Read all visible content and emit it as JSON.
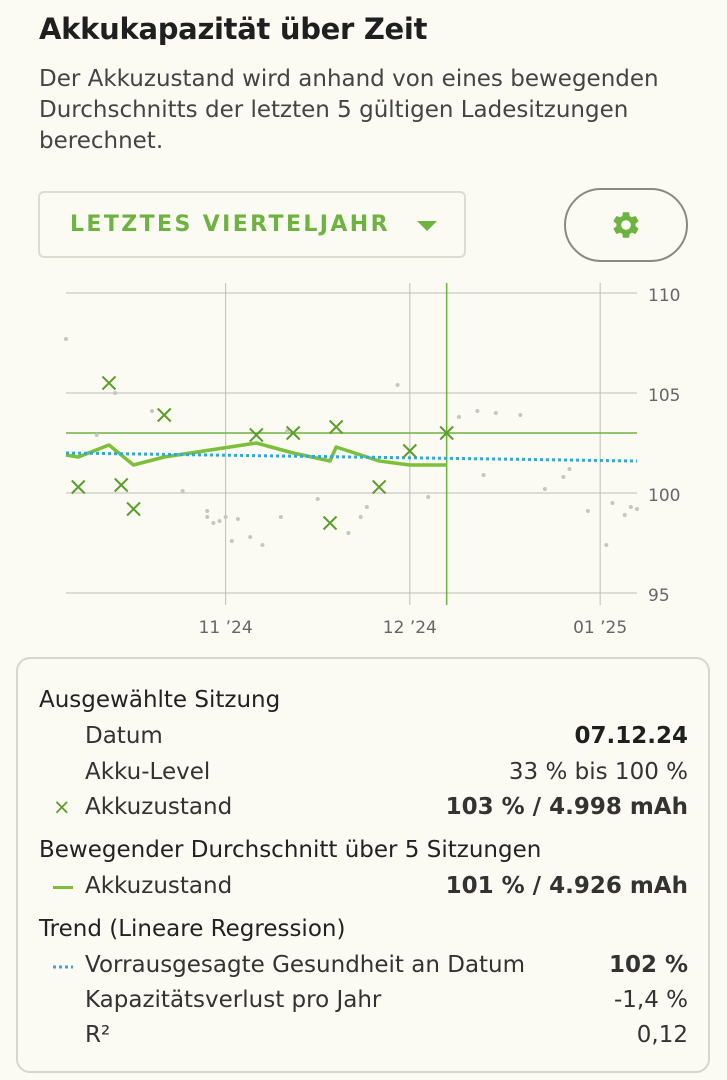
{
  "header": {
    "title": "Akkukapazität über Zeit",
    "description": "Der Akkuzustand wird anhand von eines bewegenden Durchschnitts der letzten 5 gültigen Ladesitzungen berechnet."
  },
  "controls": {
    "range_label": "LETZTES VIERTELJAHR",
    "settings_icon": "gear-icon",
    "accent_color": "#6db33f"
  },
  "chart_data": {
    "type": "line",
    "ylim": [
      95,
      110
    ],
    "y_ticks": [
      "110",
      "105",
      "100",
      "95"
    ],
    "x_ticks": [
      "11 ’24",
      "12 ’24",
      "01 ’25"
    ],
    "x_domain": [
      "2024-10-06",
      "2025-01-07"
    ],
    "x_tick_dates": [
      "2024-11-01",
      "2024-12-01",
      "2025-01-01"
    ],
    "selected_date": "2024-12-07",
    "selected_value": 103,
    "series": [
      {
        "name": "Akkuzustand",
        "type": "scatter",
        "marker": "x",
        "color": "#5c9e2c",
        "points": [
          [
            "2024-10-08",
            100.3
          ],
          [
            "2024-10-13",
            105.5
          ],
          [
            "2024-10-15",
            100.4
          ],
          [
            "2024-10-17",
            99.2
          ],
          [
            "2024-10-22",
            103.9
          ],
          [
            "2024-11-06",
            102.9
          ],
          [
            "2024-11-12",
            103.0
          ],
          [
            "2024-11-19",
            103.3
          ],
          [
            "2024-11-18",
            98.5
          ],
          [
            "2024-11-26",
            100.3
          ],
          [
            "2024-12-01",
            102.1
          ],
          [
            "2024-12-07",
            103.0
          ]
        ]
      },
      {
        "name": "Akkuzustand",
        "type": "line",
        "color": "#7cbf3a",
        "points": [
          [
            "2024-10-06",
            101.9
          ],
          [
            "2024-10-08",
            101.8
          ],
          [
            "2024-10-13",
            102.4
          ],
          [
            "2024-10-17",
            101.4
          ],
          [
            "2024-10-22",
            101.8
          ],
          [
            "2024-11-06",
            102.5
          ],
          [
            "2024-11-12",
            102.0
          ],
          [
            "2024-11-18",
            101.6
          ],
          [
            "2024-11-19",
            102.3
          ],
          [
            "2024-11-26",
            101.6
          ],
          [
            "2024-12-01",
            101.4
          ],
          [
            "2024-12-07",
            101.4
          ]
        ]
      },
      {
        "name": "Vorrausgesagte Gesundheit an Datum",
        "type": "line",
        "style": "dotted",
        "color": "#2ea9d8",
        "points": [
          [
            "2024-10-06",
            102.0
          ],
          [
            "2025-01-07",
            101.6
          ]
        ]
      },
      {
        "name": "",
        "type": "scatter",
        "marker": "dot",
        "color": "#c6c6c0",
        "points": [
          [
            "2024-10-06",
            107.7
          ],
          [
            "2024-10-11",
            102.9
          ],
          [
            "2024-10-14",
            105.0
          ],
          [
            "2024-10-20",
            104.1
          ],
          [
            "2024-10-25",
            100.1
          ],
          [
            "2024-10-29",
            99.1
          ],
          [
            "2024-10-31",
            98.6
          ],
          [
            "2024-11-01",
            98.8
          ],
          [
            "2024-11-02",
            97.6
          ],
          [
            "2024-11-03",
            98.7
          ],
          [
            "2024-11-05",
            97.8
          ],
          [
            "2024-11-07",
            97.4
          ],
          [
            "2024-11-10",
            98.8
          ],
          [
            "2024-11-11",
            103.1
          ],
          [
            "2024-11-16",
            99.7
          ],
          [
            "2024-11-21",
            98.0
          ],
          [
            "2024-11-23",
            98.8
          ],
          [
            "2024-11-24",
            99.3
          ],
          [
            "2024-11-29",
            105.4
          ],
          [
            "2024-12-04",
            99.8
          ],
          [
            "2024-12-09",
            103.8
          ],
          [
            "2024-12-12",
            104.1
          ],
          [
            "2024-12-13",
            100.9
          ],
          [
            "2024-12-15",
            104.0
          ],
          [
            "2024-12-19",
            103.9
          ],
          [
            "2024-12-23",
            100.2
          ],
          [
            "2024-12-26",
            100.8
          ],
          [
            "2024-12-27",
            101.2
          ],
          [
            "2024-12-30",
            99.1
          ],
          [
            "2025-01-02",
            97.4
          ],
          [
            "2025-01-03",
            99.5
          ],
          [
            "2025-01-05",
            98.9
          ],
          [
            "2025-01-06",
            99.3
          ],
          [
            "2025-01-07",
            99.2
          ],
          [
            "2024-10-29",
            98.8
          ],
          [
            "2024-10-30",
            98.5
          ]
        ]
      }
    ]
  },
  "details": {
    "selected_session": {
      "heading": "Ausgewählte Sitzung",
      "date_label": "Datum",
      "date_value": "07.12.24",
      "level_label": "Akku-Level",
      "level_value": "33 % bis 100 %",
      "health_label": "Akkuzustand",
      "health_value": "103 % / 4.998 mAh",
      "marker_symbol": "×"
    },
    "moving_average": {
      "heading": "Bewegender Durchschnitt über 5 Sitzungen",
      "health_label": "Akkuzustand",
      "health_value": "101 % / 4.926 mAh"
    },
    "trend": {
      "heading": "Trend (Lineare Regression)",
      "predicted_label": "Vorrausgesagte Gesundheit an Datum",
      "predicted_value": "102 %",
      "loss_label": "Kapazitätsverlust pro Jahr",
      "loss_value": "-1,4 %",
      "r2_label": "R²",
      "r2_value": "0,12"
    }
  }
}
